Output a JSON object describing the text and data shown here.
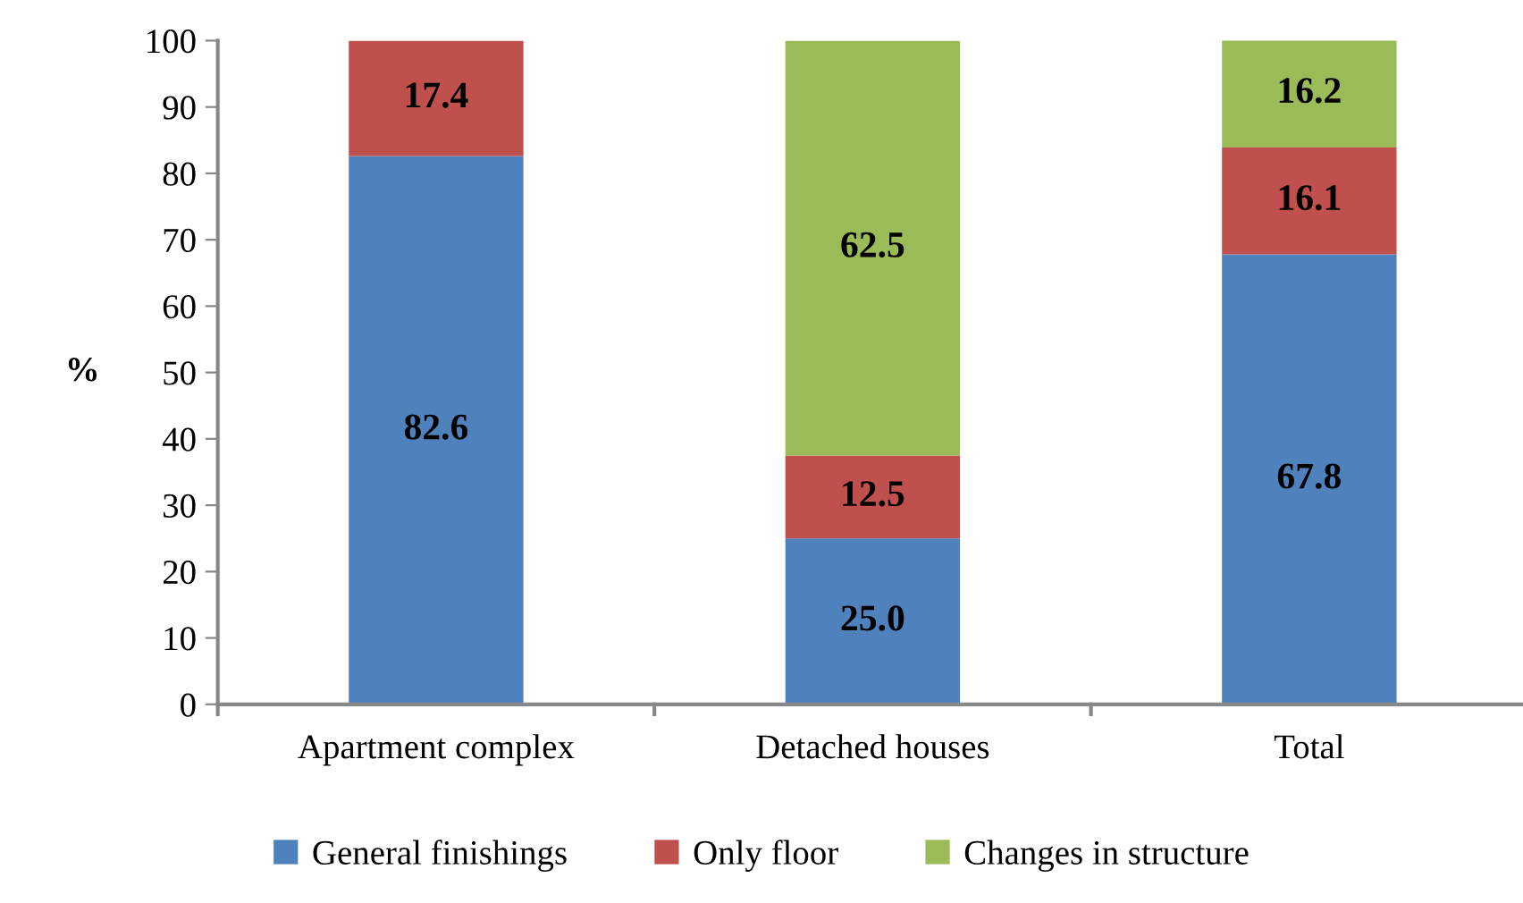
{
  "chart_data": {
    "type": "bar",
    "stacked": true,
    "ylabel": "%",
    "categories": [
      "Apartment complex",
      "Detached houses",
      "Total"
    ],
    "series": [
      {
        "name": "General finishings",
        "color": "#4f81bd",
        "values": [
          82.6,
          25.0,
          67.8
        ],
        "value_labels": [
          "82.6",
          "25.0",
          "67.8"
        ]
      },
      {
        "name": "Only floor",
        "color": "#c0504d",
        "values": [
          17.4,
          12.5,
          16.1
        ],
        "value_labels": [
          "17.4",
          "12.5",
          "16.1"
        ]
      },
      {
        "name": "Changes in structure",
        "color": "#9bbb59",
        "values": [
          null,
          62.5,
          16.2
        ],
        "value_labels": [
          null,
          "62.5",
          "16.2"
        ]
      }
    ],
    "ylim": [
      0,
      100
    ],
    "yticks": [
      0,
      10,
      20,
      30,
      40,
      50,
      60,
      70,
      80,
      90,
      100
    ],
    "grid": false,
    "legend": "bottom"
  }
}
